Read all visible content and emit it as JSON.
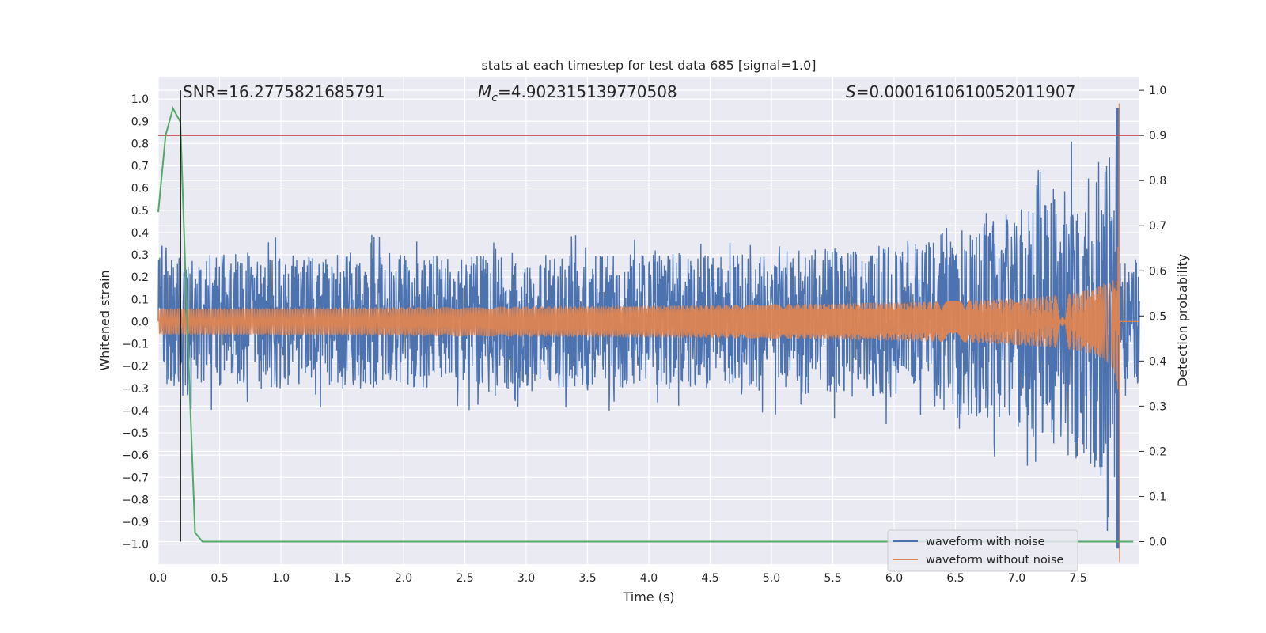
{
  "chart_data": {
    "type": "line",
    "title": "stats at each timestep for test data 685 [signal=1.0]",
    "xlabel": "Time (s)",
    "ylabel": "Whitened strain",
    "ylabel_right": "Detection probability",
    "xlim": [
      0.0,
      8.0
    ],
    "ylim": [
      -1.09,
      1.1
    ],
    "ylim_right": [
      -0.05,
      1.03
    ],
    "x_ticks": [
      "0.0",
      "0.5",
      "1.0",
      "1.5",
      "2.0",
      "2.5",
      "3.0",
      "3.5",
      "4.0",
      "4.5",
      "5.0",
      "5.5",
      "6.0",
      "6.5",
      "7.0",
      "7.5"
    ],
    "y_ticks": [
      "1.0",
      "0.9",
      "0.8",
      "0.7",
      "0.6",
      "0.5",
      "0.4",
      "0.3",
      "0.2",
      "0.1",
      "0.0",
      "−0.1",
      "−0.2",
      "−0.3",
      "−0.4",
      "−0.5",
      "−0.6",
      "−0.7",
      "−0.8",
      "−0.9",
      "−1.0"
    ],
    "y_ticks_right": [
      "0.0",
      "0.1",
      "0.2",
      "0.3",
      "0.4",
      "0.5",
      "0.6",
      "0.7",
      "0.8",
      "0.9",
      "1.0"
    ],
    "annotations": {
      "snr": "SNR=16.2775821685791",
      "mc_symbol": "M",
      "mc_subscript": "c",
      "mc_value": "=4.902315139770508",
      "s_symbol": "S",
      "s_value": "=0.0001610610052011907"
    },
    "series": [
      {
        "name": "waveform with noise",
        "color": "#4c72b0",
        "axis": "left",
        "description": "noisy whitened strain, amplitude ~0.35 growing to ~0.95 near merger"
      },
      {
        "name": "waveform without noise",
        "color": "#dd8452",
        "axis": "left",
        "description": "clean chirp, amplitude ~0.06 growing to ~1.0 at merger (t≈7.83 s)"
      },
      {
        "name": "detection probability",
        "color": "#55a868",
        "axis": "right",
        "x": [
          0.0,
          0.06,
          0.12,
          0.18,
          0.24,
          0.3,
          0.36,
          0.42,
          7.95
        ],
        "values": [
          0.73,
          0.9,
          0.96,
          0.93,
          0.45,
          0.02,
          0.0,
          0.0,
          0.0
        ]
      }
    ],
    "threshold_right": 0.9,
    "threshold_color": "#c44e52",
    "event_time": 0.18,
    "merger_time": 7.83,
    "legend": [
      "waveform with noise",
      "waveform without noise"
    ],
    "legend_position": "lower-right",
    "grid": true
  }
}
